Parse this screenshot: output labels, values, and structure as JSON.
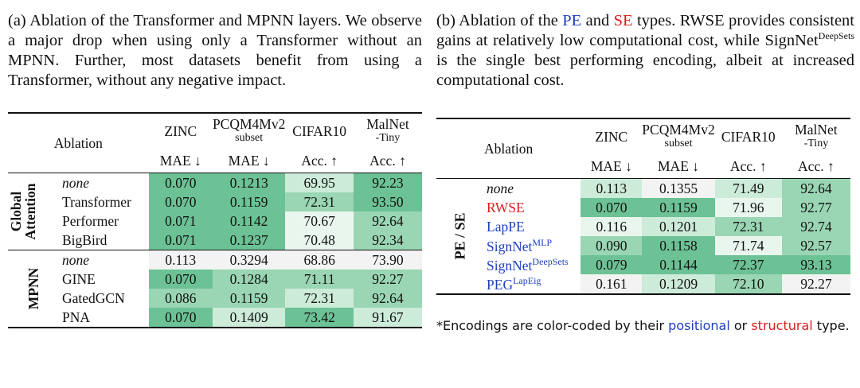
{
  "panel_a": {
    "caption_prefix": "(a) Ablation of the Transformer and MPNN layers. We observe a major drop when using only a Transformer without an MPNN. Further, most datasets benefit from using a Transformer, without any negative impact.",
    "headers": {
      "ablation": "Ablation",
      "zinc": "ZINC",
      "pcqm_top": "PCQM4Mv2",
      "pcqm_sub": "subset",
      "cifar": "CIFAR10",
      "malnet_top": "MalNet",
      "malnet_sub": "-Tiny",
      "m_zinc": "MAE ↓",
      "m_pcqm": "MAE ↓",
      "m_cifar": "Acc. ↑",
      "m_malnet": "Acc. ↑"
    },
    "groups": [
      {
        "name": "Global Attention",
        "rows": [
          {
            "label": "none",
            "italic": true,
            "values": [
              "0.070",
              "0.1213",
              "69.95",
              "92.23"
            ]
          },
          {
            "label": "Transformer",
            "values": [
              "0.070",
              "0.1159",
              "72.31",
              "93.50"
            ]
          },
          {
            "label": "Performer",
            "values": [
              "0.071",
              "0.1142",
              "70.67",
              "92.64"
            ]
          },
          {
            "label": "BigBird",
            "values": [
              "0.071",
              "0.1237",
              "70.48",
              "92.34"
            ]
          }
        ]
      },
      {
        "name": "MPNN",
        "rows": [
          {
            "label": "none",
            "italic": true,
            "values": [
              "0.113",
              "0.3294",
              "68.86",
              "73.90"
            ]
          },
          {
            "label": "GINE",
            "values": [
              "0.070",
              "0.1284",
              "71.11",
              "92.27"
            ]
          },
          {
            "label": "GatedGCN",
            "values": [
              "0.086",
              "0.1159",
              "72.31",
              "92.64"
            ]
          },
          {
            "label": "PNA",
            "values": [
              "0.070",
              "0.1409",
              "73.42",
              "91.67"
            ]
          }
        ]
      }
    ]
  },
  "panel_b": {
    "caption_1": "(b) Ablation of the ",
    "caption_pe": "PE",
    "caption_2": " and ",
    "caption_se": "SE",
    "caption_3": " types. RWSE provides consistent gains at relatively low computational cost, while SignNet",
    "caption_sup": "DeepSets",
    "caption_4": " is the single best performing encoding, albeit at increased computational cost.",
    "group_name": "PE / SE",
    "rows": [
      {
        "label": "none",
        "italic": true,
        "sup": "",
        "color": "",
        "values": [
          "0.113",
          "0.1355",
          "71.49",
          "92.64"
        ]
      },
      {
        "label": "RWSE",
        "sup": "",
        "color": "#d81f1f",
        "values": [
          "0.070",
          "0.1159",
          "71.96",
          "92.77"
        ]
      },
      {
        "label": "LapPE",
        "sup": "",
        "color": "#1f3fbf",
        "values": [
          "0.116",
          "0.1201",
          "72.31",
          "92.74"
        ]
      },
      {
        "label": "SignNet",
        "sup": "MLP",
        "color": "#1f3fbf",
        "values": [
          "0.090",
          "0.1158",
          "71.74",
          "92.57"
        ]
      },
      {
        "label": "SignNet",
        "sup": "DeepSets",
        "color": "#1f3fbf",
        "values": [
          "0.079",
          "0.1144",
          "72.37",
          "93.13"
        ]
      },
      {
        "label": "PEG",
        "sup": "LapEig",
        "color": "#1f3fbf",
        "values": [
          "0.161",
          "0.1209",
          "72.10",
          "92.27"
        ]
      }
    ],
    "note_1": "*Encodings are color-coded by their ",
    "note_pos": "positional",
    "note_2": " or ",
    "note_struct": "structural",
    "note_3": " type."
  },
  "colors": {
    "cell_dark": "#6cc295",
    "cell_mid": "#9ad6b4",
    "cell_light": "#cdebd9",
    "cell_pale": "#e9f6ee",
    "cell_none": "#f3f3f3",
    "positional": "#1f3fbf",
    "structural": "#d81f1f"
  },
  "cell_shading_a": [
    [
      "dark",
      "dark",
      "light",
      "dark"
    ],
    [
      "dark",
      "dark",
      "mid",
      "dark"
    ],
    [
      "dark",
      "dark",
      "pale",
      "mid"
    ],
    [
      "dark",
      "dark",
      "pale",
      "mid"
    ],
    [
      "none",
      "none",
      "none",
      "none"
    ],
    [
      "dark",
      "mid",
      "mid",
      "mid"
    ],
    [
      "mid",
      "mid",
      "light",
      "mid"
    ],
    [
      "dark",
      "light",
      "dark",
      "light"
    ]
  ],
  "cell_shading_b": [
    [
      "light",
      "none",
      "light",
      "mid"
    ],
    [
      "dark",
      "dark",
      "pale",
      "mid"
    ],
    [
      "pale",
      "light",
      "mid",
      "mid"
    ],
    [
      "mid",
      "dark",
      "pale",
      "mid"
    ],
    [
      "dark",
      "dark",
      "dark",
      "dark"
    ],
    [
      "none",
      "light",
      "mid",
      "none"
    ]
  ]
}
